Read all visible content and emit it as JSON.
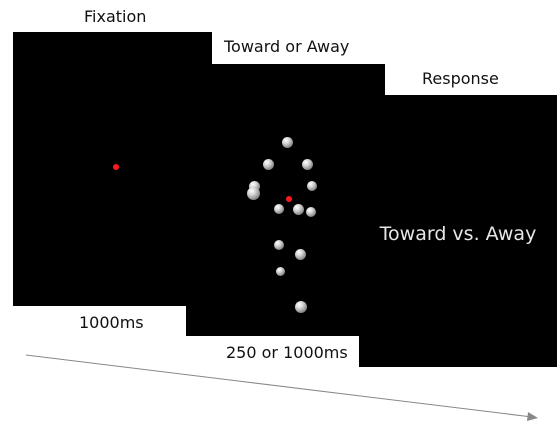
{
  "stages": {
    "fixation": {
      "title": "Fixation",
      "duration": "1000ms"
    },
    "toward_away": {
      "title": "Toward or Away",
      "duration": "250 or 1000ms"
    },
    "response": {
      "title": "Response",
      "prompt": "Toward vs. Away"
    }
  },
  "colors": {
    "screen": "#000000",
    "fixation_dot": "#ff1a1a",
    "arrow": "#888888"
  }
}
